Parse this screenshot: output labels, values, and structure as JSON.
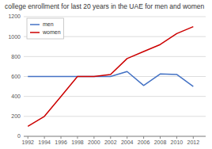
{
  "chart_data": {
    "type": "line",
    "title": "college enrollment for last 20 years in the UAE for men and women",
    "x": [
      1992,
      1994,
      1996,
      1998,
      2000,
      2002,
      2004,
      2006,
      2008,
      2010,
      2012
    ],
    "series": [
      {
        "name": "men",
        "color": "#4472c4",
        "values": [
          600,
          600,
          600,
          600,
          600,
          600,
          650,
          510,
          625,
          620,
          500
        ]
      },
      {
        "name": "women",
        "color": "#cc0000",
        "values": [
          100,
          200,
          400,
          600,
          600,
          620,
          780,
          850,
          920,
          1030,
          1100
        ]
      }
    ],
    "xlim": [
      1991.5,
      2013.5
    ],
    "xticks": [
      1992,
      1994,
      1996,
      1998,
      2000,
      2002,
      2004,
      2006,
      2008,
      2010,
      2012
    ],
    "ylim": [
      0,
      1200
    ],
    "yticks": [
      0,
      200,
      400,
      600,
      800,
      1000,
      1200
    ],
    "grid": true,
    "legend": "upper left"
  }
}
